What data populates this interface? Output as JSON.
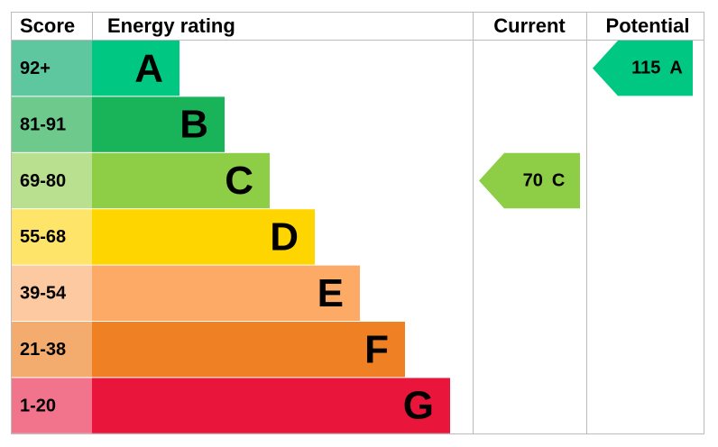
{
  "headers": {
    "score": "Score",
    "rating": "Energy rating",
    "current": "Current",
    "potential": "Potential"
  },
  "bands": [
    {
      "score": "92+",
      "letter": "A",
      "color": "#00c781",
      "score_color": "#5fc7a0"
    },
    {
      "score": "81-91",
      "letter": "B",
      "color": "#19b459",
      "score_color": "#6ec98c"
    },
    {
      "score": "69-80",
      "letter": "C",
      "color": "#8dce46",
      "score_color": "#b8e08e"
    },
    {
      "score": "55-68",
      "letter": "D",
      "color": "#ffd500",
      "score_color": "#ffe46a"
    },
    {
      "score": "39-54",
      "letter": "E",
      "color": "#fcaa65",
      "score_color": "#fdc9a0"
    },
    {
      "score": "21-38",
      "letter": "F",
      "color": "#ef8023",
      "score_color": "#f4ac6e"
    },
    {
      "score": "1-20",
      "letter": "G",
      "color": "#e9153b",
      "score_color": "#f1748c"
    }
  ],
  "current": {
    "value": "70",
    "letter": "C"
  },
  "potential": {
    "value": "115",
    "letter": "A"
  }
}
